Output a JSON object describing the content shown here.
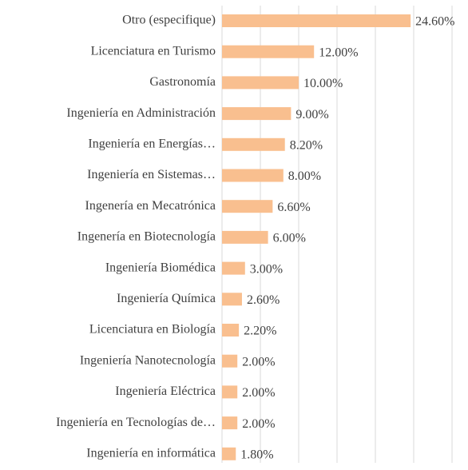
{
  "chart_data": {
    "type": "barh",
    "categories": [
      "Otro (especifique)",
      "Licenciatura en Turismo",
      "Gastronomía",
      "Ingeniería en Administración",
      "Ingeniería en Energías…",
      "Ingeniería en Sistemas…",
      "Ingenería en Mecatrónica",
      "Ingenería en Biotecnología",
      "Ingeniería Biomédica",
      "Ingeniería Química",
      "Licenciatura en Biología",
      "Ingeniería Nanotecnología",
      "Ingeniería Eléctrica",
      "Ingeniería en Tecnologías de…",
      "Ingeniería en informática"
    ],
    "values": [
      24.6,
      12,
      10,
      9,
      8.2,
      8,
      6.6,
      6,
      3,
      2.6,
      2.2,
      2,
      2,
      2,
      1.8
    ],
    "value_labels": [
      "24.60%",
      "12.00%",
      "10.00%",
      "9.00%",
      "8.20%",
      "8.00%",
      "6.60%",
      "6.00%",
      "3.00%",
      "2.60%",
      "2.20%",
      "2.00%",
      "2.00%",
      "2.00%",
      "1.80%"
    ],
    "color": "#f9bf8f",
    "xlim": [
      0,
      30
    ],
    "xticks": [
      0,
      5,
      10,
      15,
      20,
      25,
      30
    ],
    "grid": true
  }
}
